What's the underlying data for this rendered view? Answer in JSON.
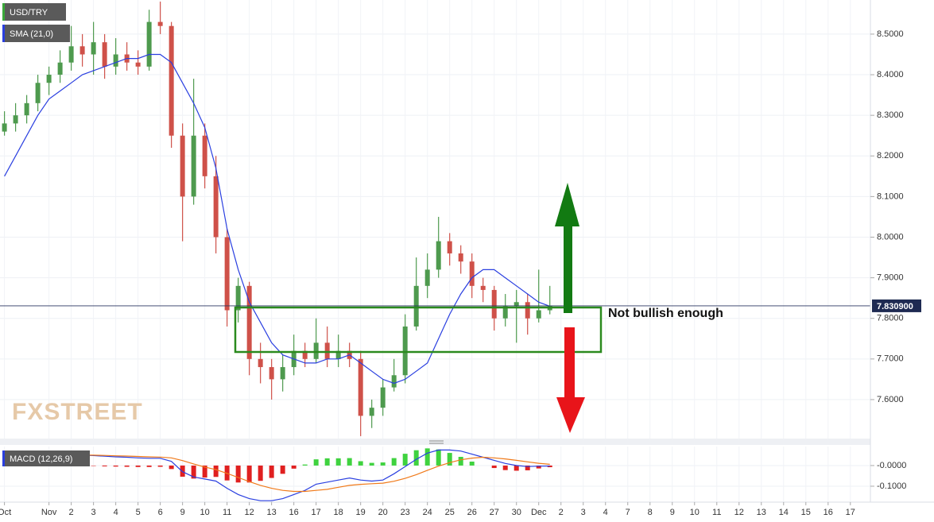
{
  "chart_data": [
    {
      "type": "candlestick",
      "title": "USD/TRY",
      "watermark": "FXSTREET",
      "annotation": "Not bullish enough",
      "up_color": "#4e9a4e",
      "down_color": "#cf5149",
      "grid": true,
      "x": [
        -2,
        -1.5,
        -1,
        -0.5,
        0,
        0.5,
        1,
        1.5,
        2,
        2.5,
        3,
        3.5,
        4,
        4.5,
        5,
        5.5,
        6,
        6.5,
        7,
        7.5,
        8,
        8.5,
        9,
        9.5,
        10,
        10.5,
        11,
        11.5,
        12,
        12.5,
        13,
        13.5,
        14,
        14.5,
        15,
        15.5,
        16,
        16.5,
        17,
        17.5,
        18,
        18.5,
        19,
        19.5,
        20,
        20.5,
        21,
        21.5,
        22,
        22.5
      ],
      "open": [
        8.26,
        8.28,
        8.3,
        8.33,
        8.38,
        8.4,
        8.43,
        8.47,
        8.45,
        8.48,
        8.42,
        8.45,
        8.43,
        8.42,
        8.53,
        8.52,
        8.25,
        8.1,
        8.25,
        8.15,
        8.0,
        7.82,
        7.88,
        7.7,
        7.68,
        7.65,
        7.68,
        7.72,
        7.7,
        7.74,
        7.7,
        7.72,
        7.7,
        7.56,
        7.58,
        7.63,
        7.66,
        7.78,
        7.88,
        7.92,
        7.99,
        7.96,
        7.94,
        7.88,
        7.87,
        7.8,
        7.83,
        7.84,
        7.8,
        7.82
      ],
      "high": [
        8.31,
        8.33,
        8.35,
        8.4,
        8.42,
        8.46,
        8.52,
        8.5,
        8.53,
        8.5,
        8.49,
        8.48,
        8.46,
        8.56,
        8.58,
        8.53,
        8.28,
        8.39,
        8.28,
        8.2,
        8.02,
        7.9,
        7.89,
        7.74,
        7.7,
        7.71,
        7.76,
        7.74,
        7.8,
        7.78,
        7.76,
        7.74,
        7.72,
        7.6,
        7.65,
        7.7,
        7.81,
        7.95,
        7.96,
        8.05,
        8.01,
        7.98,
        7.96,
        7.9,
        7.88,
        7.86,
        7.87,
        7.86,
        7.92,
        7.88
      ],
      "low": [
        8.25,
        8.26,
        8.28,
        8.31,
        8.35,
        8.38,
        8.41,
        8.42,
        8.4,
        8.39,
        8.4,
        8.41,
        8.4,
        8.41,
        8.5,
        8.22,
        7.99,
        8.08,
        8.12,
        7.96,
        7.78,
        7.79,
        7.66,
        7.64,
        7.6,
        7.62,
        7.66,
        7.68,
        7.69,
        7.68,
        7.68,
        7.68,
        7.51,
        7.53,
        7.56,
        7.62,
        7.64,
        7.77,
        7.85,
        7.9,
        7.93,
        7.91,
        7.85,
        7.84,
        7.77,
        7.78,
        7.74,
        7.76,
        7.79,
        7.81
      ],
      "close": [
        8.28,
        8.3,
        8.33,
        8.38,
        8.4,
        8.43,
        8.47,
        8.45,
        8.48,
        8.42,
        8.45,
        8.43,
        8.42,
        8.53,
        8.52,
        8.25,
        8.1,
        8.25,
        8.15,
        8.0,
        7.82,
        7.88,
        7.7,
        7.68,
        7.65,
        7.68,
        7.72,
        7.7,
        7.74,
        7.7,
        7.72,
        7.7,
        7.56,
        7.58,
        7.63,
        7.66,
        7.78,
        7.88,
        7.92,
        7.99,
        7.96,
        7.94,
        7.88,
        7.87,
        7.8,
        7.83,
        7.84,
        7.8,
        7.82,
        7.8309
      ],
      "series": [
        {
          "name": "SMA (21,0)",
          "color": "#2a3fe0",
          "values": [
            8.15,
            8.2,
            8.25,
            8.3,
            8.34,
            8.36,
            8.38,
            8.4,
            8.41,
            8.42,
            8.43,
            8.44,
            8.44,
            8.45,
            8.45,
            8.43,
            8.38,
            8.33,
            8.27,
            8.17,
            8.02,
            7.92,
            7.84,
            7.79,
            7.74,
            7.71,
            7.7,
            7.69,
            7.69,
            7.7,
            7.7,
            7.71,
            7.69,
            7.67,
            7.65,
            7.64,
            7.65,
            7.67,
            7.69,
            7.75,
            7.81,
            7.86,
            7.9,
            7.92,
            7.92,
            7.9,
            7.88,
            7.86,
            7.84,
            7.83
          ]
        }
      ],
      "last_price": 7.8309,
      "last_price_label": "7.830900",
      "xlim": [
        -2.2,
        36.9
      ],
      "ylim": [
        7.504,
        8.584
      ],
      "yticks": [
        {
          "value": 7.6,
          "label": "7.6000"
        },
        {
          "value": 7.7,
          "label": "7.7000"
        },
        {
          "value": 7.8,
          "label": "7.8000"
        },
        {
          "value": 7.9,
          "label": "7.9000"
        },
        {
          "value": 8.0,
          "label": "8.0000"
        },
        {
          "value": 8.1,
          "label": "8.1000"
        },
        {
          "value": 8.2,
          "label": "8.2000"
        },
        {
          "value": 8.3,
          "label": "8.3000"
        },
        {
          "value": 8.4,
          "label": "8.4000"
        },
        {
          "value": 8.5,
          "label": "8.5000"
        }
      ]
    },
    {
      "type": "macd",
      "title": "MACD (12,26,9)",
      "up_color": "#3fd23f",
      "down_color": "#e02020",
      "x": [
        -2,
        -1.5,
        -1,
        -0.5,
        0,
        0.5,
        1,
        1.5,
        2,
        2.5,
        3,
        3.5,
        4,
        4.5,
        5,
        5.5,
        6,
        6.5,
        7,
        7.5,
        8,
        8.5,
        9,
        9.5,
        10,
        10.5,
        11,
        11.5,
        12,
        12.5,
        13,
        13.5,
        14,
        14.5,
        15,
        15.5,
        16,
        16.5,
        17,
        17.5,
        18,
        18.5,
        19,
        19.5,
        20,
        20.5,
        21,
        21.5,
        22,
        22.5
      ],
      "series": [
        {
          "color": "#2a3fe0",
          "values": [
            0.05,
            0.052,
            0.054,
            0.055,
            0.055,
            0.054,
            0.052,
            0.05,
            0.048,
            0.045,
            0.042,
            0.04,
            0.037,
            0.035,
            0.035,
            0.02,
            -0.03,
            -0.055,
            -0.065,
            -0.075,
            -0.11,
            -0.14,
            -0.16,
            -0.17,
            -0.17,
            -0.16,
            -0.14,
            -0.12,
            -0.09,
            -0.08,
            -0.07,
            -0.06,
            -0.07,
            -0.075,
            -0.07,
            -0.04,
            -0.005,
            0.03,
            0.06,
            0.075,
            0.075,
            0.07,
            0.055,
            0.04,
            0.025,
            0.01,
            0.0,
            -0.005,
            -0.003,
            -0.002
          ]
        },
        {
          "color": "#f07a1a",
          "values": [
            0.048,
            0.049,
            0.05,
            0.051,
            0.052,
            0.052,
            0.052,
            0.051,
            0.05,
            0.049,
            0.047,
            0.046,
            0.044,
            0.042,
            0.041,
            0.037,
            0.024,
            0.008,
            -0.007,
            -0.02,
            -0.038,
            -0.058,
            -0.078,
            -0.096,
            -0.11,
            -0.12,
            -0.125,
            -0.125,
            -0.12,
            -0.115,
            -0.105,
            -0.096,
            -0.091,
            -0.088,
            -0.085,
            -0.076,
            -0.062,
            -0.044,
            -0.023,
            -0.003,
            0.014,
            0.028,
            0.036,
            0.04,
            0.037,
            0.032,
            0.025,
            0.018,
            0.011,
            0.006
          ]
        }
      ],
      "histogram": [
        0.002,
        0.003,
        0.004,
        0.004,
        0.003,
        0.002,
        0,
        -0.001,
        -0.002,
        -0.004,
        -0.005,
        -0.006,
        -0.007,
        -0.007,
        -0.006,
        -0.017,
        -0.054,
        -0.063,
        -0.058,
        -0.055,
        -0.072,
        -0.082,
        -0.082,
        -0.074,
        -0.06,
        -0.04,
        -0.015,
        0.005,
        0.03,
        0.035,
        0.035,
        0.036,
        0.021,
        0.013,
        0.015,
        0.036,
        0.057,
        0.074,
        0.083,
        0.078,
        0.061,
        0.042,
        0.019,
        0,
        -0.012,
        -0.022,
        -0.025,
        -0.023,
        -0.014,
        -0.008
      ],
      "xlim": [
        -2.2,
        36.9
      ],
      "ylim": [
        -0.177,
        0.092
      ],
      "yticks": [
        {
          "value": 0,
          "label": "-0.0000"
        },
        {
          "value": -0.1,
          "label": "-0.1000"
        }
      ],
      "xticks": [
        {
          "value": -2,
          "label": "Oct"
        },
        {
          "value": 0,
          "label": "Nov"
        },
        {
          "value": 1,
          "label": "2"
        },
        {
          "value": 2,
          "label": "3"
        },
        {
          "value": 3,
          "label": "4"
        },
        {
          "value": 4,
          "label": "5"
        },
        {
          "value": 5,
          "label": "6"
        },
        {
          "value": 6,
          "label": "9"
        },
        {
          "value": 7,
          "label": "10"
        },
        {
          "value": 8,
          "label": "11"
        },
        {
          "value": 9,
          "label": "12"
        },
        {
          "value": 10,
          "label": "13"
        },
        {
          "value": 11,
          "label": "16"
        },
        {
          "value": 12,
          "label": "17"
        },
        {
          "value": 13,
          "label": "18"
        },
        {
          "value": 14,
          "label": "19"
        },
        {
          "value": 15,
          "label": "20"
        },
        {
          "value": 16,
          "label": "23"
        },
        {
          "value": 17,
          "label": "24"
        },
        {
          "value": 18,
          "label": "25"
        },
        {
          "value": 19,
          "label": "26"
        },
        {
          "value": 20,
          "label": "27"
        },
        {
          "value": 21,
          "label": "30"
        },
        {
          "value": 22,
          "label": "Dec"
        },
        {
          "value": 23,
          "label": "2"
        },
        {
          "value": 24,
          "label": "3"
        },
        {
          "value": 25,
          "label": "4"
        },
        {
          "value": 26,
          "label": "7"
        },
        {
          "value": 27,
          "label": "8"
        },
        {
          "value": 28,
          "label": "9"
        },
        {
          "value": 29,
          "label": "10"
        },
        {
          "value": 30,
          "label": "11"
        },
        {
          "value": 31,
          "label": "12"
        },
        {
          "value": 32,
          "label": "13"
        },
        {
          "value": 33,
          "label": "14"
        },
        {
          "value": 34,
          "label": "15"
        },
        {
          "value": 35,
          "label": "16"
        },
        {
          "value": 36,
          "label": "17"
        }
      ]
    }
  ]
}
